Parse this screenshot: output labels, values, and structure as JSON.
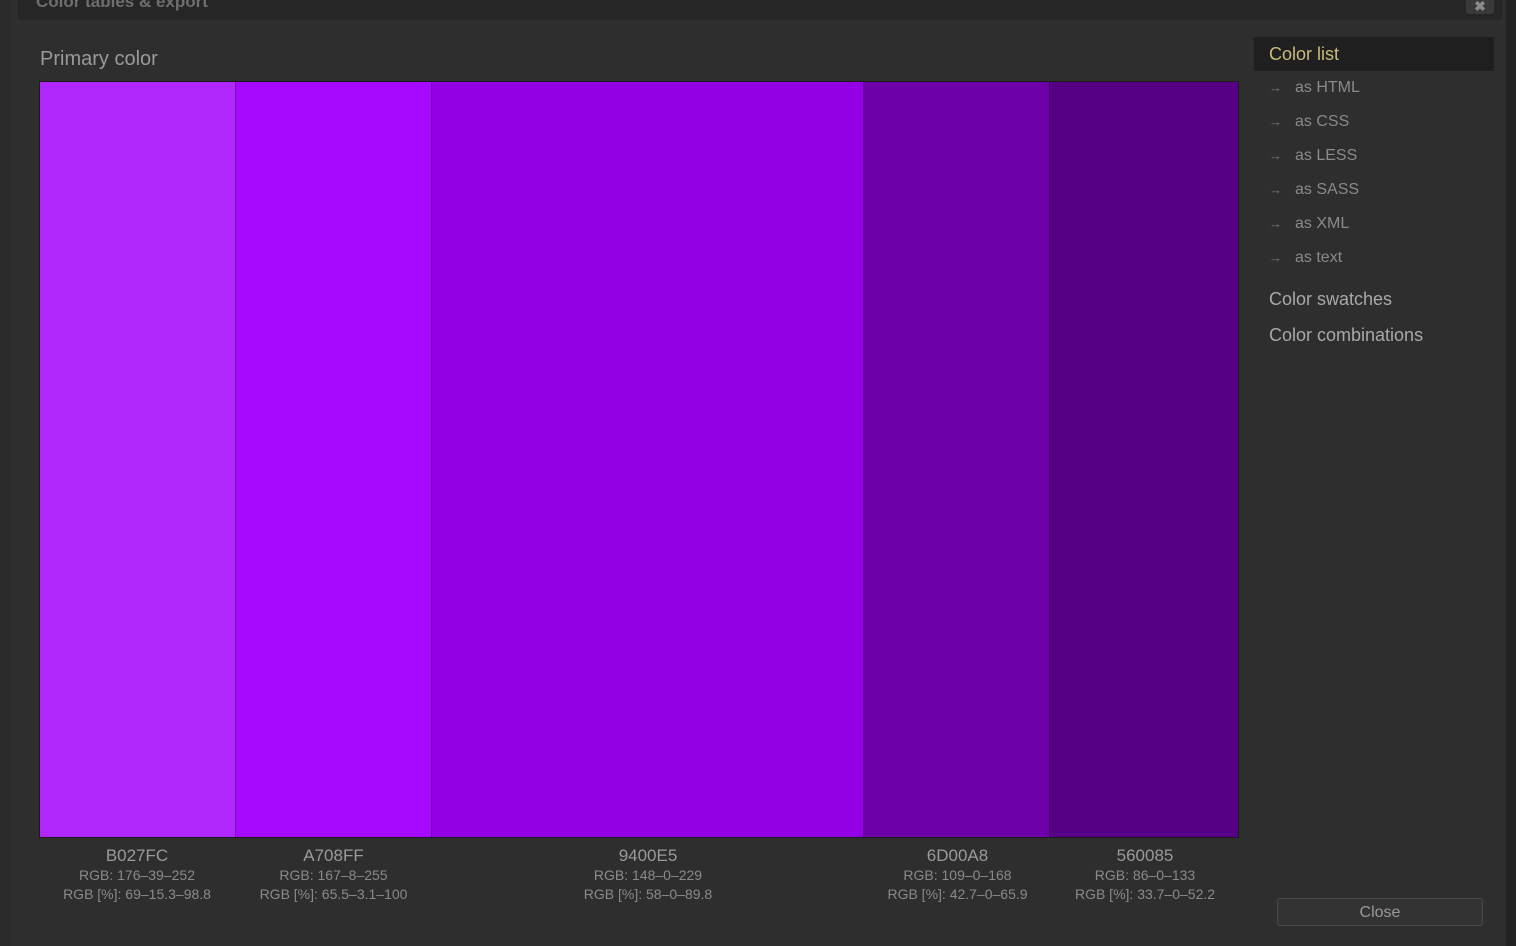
{
  "dialog": {
    "title": "Color tables & export",
    "close_icon": "close-icon"
  },
  "section": {
    "title": "Primary color"
  },
  "swatches": [
    {
      "hex": "B027FC",
      "color": "#B027FC",
      "rgb": "RGB: 176–39–252",
      "rgb_pct": "RGB [%]: 69–15.3–98.8"
    },
    {
      "hex": "A708FF",
      "color": "#A708FF",
      "rgb": "RGB: 167–8–255",
      "rgb_pct": "RGB [%]: 65.5–3.1–100"
    },
    {
      "hex": "9400E5",
      "color": "#9400E5",
      "rgb": "RGB: 148–0–229",
      "rgb_pct": "RGB [%]: 58–0–89.8"
    },
    {
      "hex": "6D00A8",
      "color": "#6D00A8",
      "rgb": "RGB: 109–0–168",
      "rgb_pct": "RGB [%]: 42.7–0–65.9"
    },
    {
      "hex": "560085",
      "color": "#560085",
      "rgb": "RGB: 86–0–133",
      "rgb_pct": "RGB [%]: 33.7–0–52.2"
    }
  ],
  "sidebar": {
    "active": "Color list",
    "sub_arrow": "→",
    "sub_items": [
      "as HTML",
      "as CSS",
      "as LESS",
      "as SASS",
      "as XML",
      "as text"
    ],
    "items": [
      "Color swatches",
      "Color combinations"
    ]
  },
  "footer": {
    "close_label": "Close"
  },
  "colors": {
    "accent": "#c9b97a",
    "background": "#2e2e2e"
  }
}
